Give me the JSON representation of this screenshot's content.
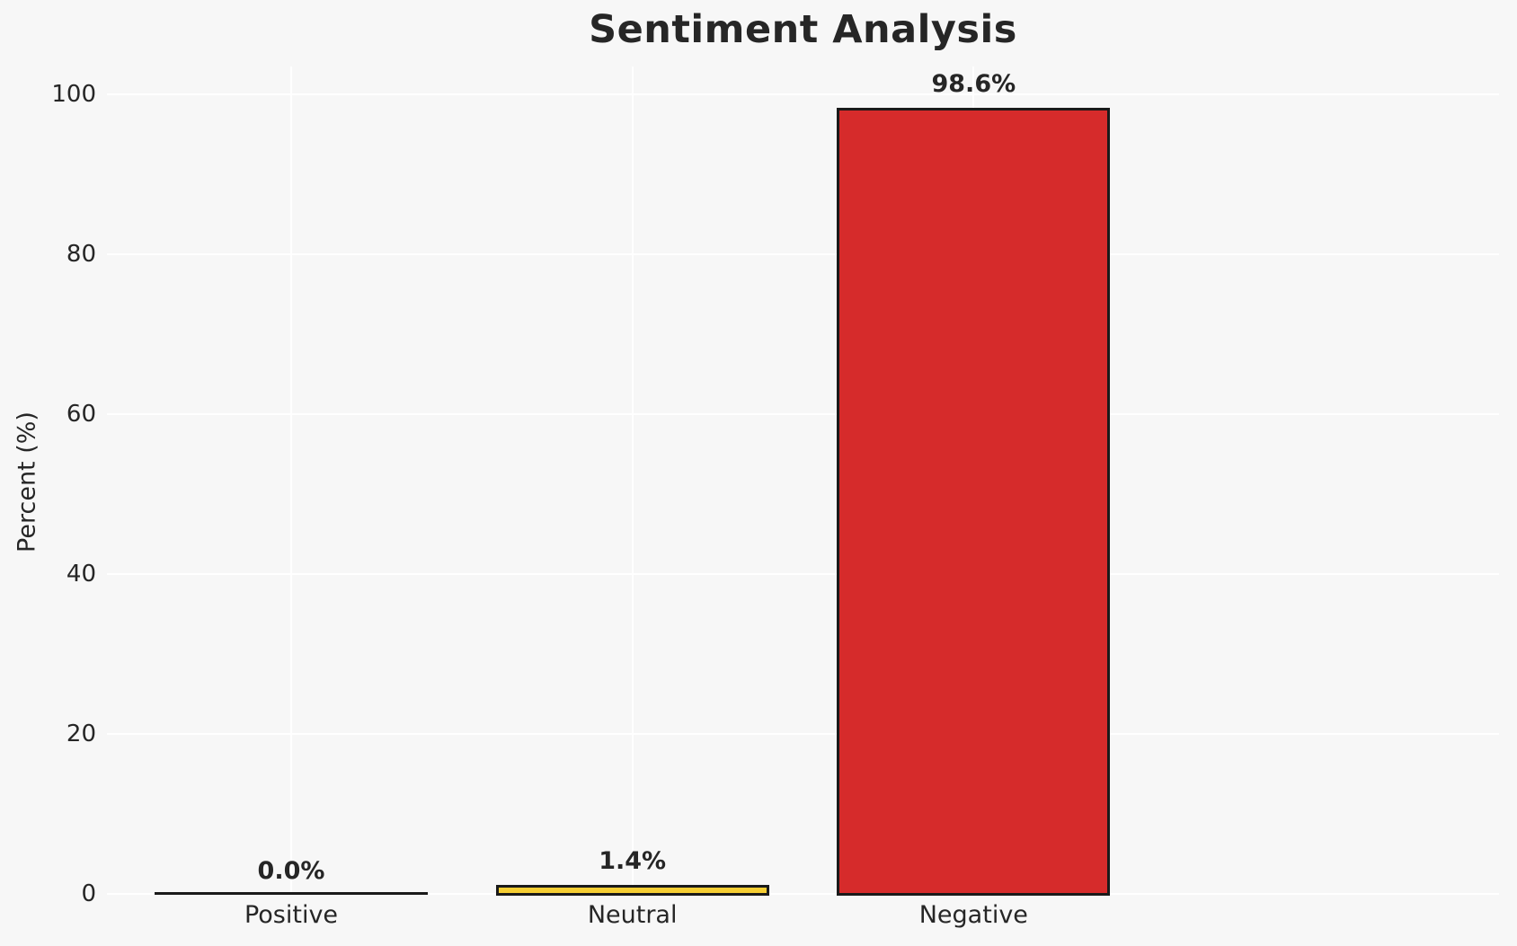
{
  "chart_data": {
    "type": "bar",
    "title": "Sentiment Analysis",
    "categories": [
      "Positive",
      "Neutral",
      "Negative"
    ],
    "values": [
      0.0,
      1.4,
      98.6
    ],
    "value_labels": [
      "0.0%",
      "1.4%",
      "98.6%"
    ],
    "bar_colors": [
      null,
      "#f6ce33",
      "#d62b2b"
    ],
    "bar_edge_color": "#1a1a1a",
    "xlabel": "",
    "ylabel": "Percent (%)",
    "yticks": [
      0,
      20,
      40,
      60,
      80,
      100
    ],
    "ylim": [
      0,
      103.5
    ],
    "grid": true,
    "legend": false,
    "grid_color": "#ffffff",
    "background_color": "#f7f7f7",
    "text_color": "#262626"
  }
}
